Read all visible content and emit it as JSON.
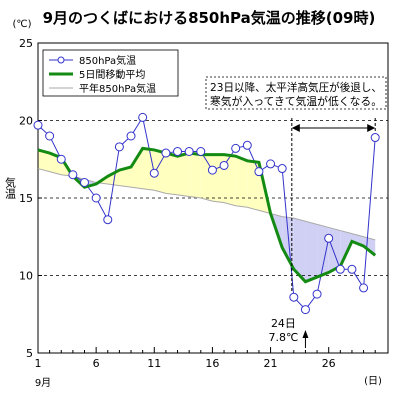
{
  "chart_data": {
    "type": "line",
    "title": "9月のつくばにおける850hPa気温の推移(09時)",
    "ylabel": "気温",
    "yunit": "(℃)",
    "xunit": "(日)",
    "month_label": "9月",
    "ylim": [
      5,
      25
    ],
    "yticks": [
      5,
      10,
      15,
      20,
      25
    ],
    "xlim": [
      1,
      30
    ],
    "xticks": [
      1,
      6,
      11,
      16,
      21,
      26
    ],
    "grid": "horizontal dashed",
    "legend_position": "top-left",
    "colors": {
      "daily": "#3333cc",
      "ma5": "#138b13",
      "normal": "#aaaaaa",
      "warm_fill": "#ffffc0",
      "cool_fill": "#d0d0f4"
    },
    "x": [
      1,
      2,
      3,
      4,
      5,
      6,
      7,
      8,
      9,
      10,
      11,
      12,
      13,
      14,
      15,
      16,
      17,
      18,
      19,
      20,
      21,
      22,
      23,
      24,
      25,
      26,
      27,
      28,
      29,
      30
    ],
    "series": [
      {
        "name": "850hPa気温",
        "style": "line-with-circle-markers",
        "values": [
          19.7,
          19.0,
          17.5,
          16.5,
          16.0,
          15.0,
          13.6,
          18.3,
          19.0,
          20.2,
          16.6,
          17.9,
          18.0,
          18.0,
          18.0,
          16.8,
          17.1,
          18.2,
          18.4,
          16.7,
          17.2,
          16.9,
          8.6,
          7.8,
          8.8,
          12.4,
          10.4,
          10.4,
          9.2,
          18.9
        ]
      },
      {
        "name": "5日間移動平均",
        "style": "thick-line",
        "values": [
          18.1,
          17.9,
          17.6,
          16.4,
          15.7,
          15.9,
          16.4,
          16.8,
          17.0,
          18.2,
          18.1,
          17.9,
          17.7,
          17.9,
          17.8,
          17.8,
          17.8,
          17.7,
          17.4,
          17.3,
          14.0,
          11.8,
          10.4,
          9.6,
          9.9,
          10.2,
          10.6,
          12.2,
          11.9,
          11.3
        ]
      },
      {
        "name": "平年850hPa気温",
        "style": "thin-line",
        "values": [
          16.9,
          16.7,
          16.5,
          16.4,
          16.2,
          16.0,
          15.9,
          15.8,
          15.7,
          15.6,
          15.5,
          15.3,
          15.2,
          15.1,
          15.0,
          14.8,
          14.7,
          14.5,
          14.4,
          14.2,
          14.0,
          13.8,
          13.7,
          13.5,
          13.3,
          13.1,
          12.9,
          12.7,
          12.5,
          12.3
        ]
      }
    ],
    "annotations": {
      "box_text_line1": "23日以降、太平洋高気圧が後退し、",
      "box_text_line2": "寒気が入ってきて気温が低くなる。",
      "min_day_label": "24日",
      "min_temp_label": "7.8℃",
      "range_start_day": 23,
      "range_end_day": 30
    }
  }
}
